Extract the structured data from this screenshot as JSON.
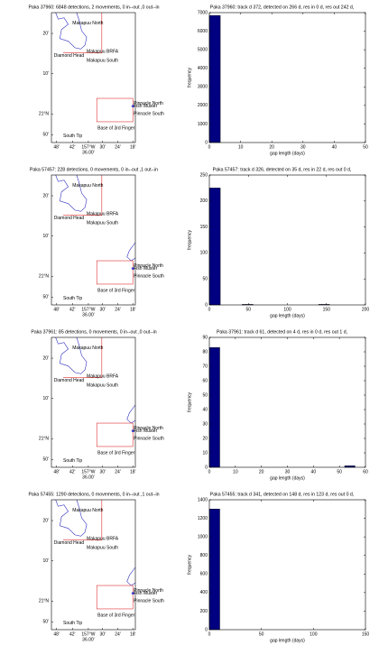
{
  "maps": [
    {
      "title": "Paka 37960: 6848 detections, 2 movements, 0 in--out ,0 out--in"
    },
    {
      "title": "Paka 57457: 228 detections, 0 movements, 0 in--out ,1 out--in"
    },
    {
      "title": "Paka 37961: 85 detections, 0 movements, 0 in--out ,0 out--in"
    },
    {
      "title": "Paka 57455: 1290 detections, 0 movements, 0 in--out ,1 out--in"
    }
  ],
  "map": {
    "places": [
      "Makapuu North",
      "Makapuu BRFA",
      "Diamond Head",
      "Makapuu South",
      "Fish Muster",
      "Pinnacle North",
      "Pinnacle South",
      "Base of 3rd Finger",
      "South Tip"
    ],
    "lat_ticks": [
      "20'",
      "10'",
      "21°N",
      "50'"
    ],
    "lon_ticks": [
      "48'",
      "42'",
      "157°W",
      "30'",
      "24'",
      "18'"
    ],
    "lon_sub": "36.00'"
  },
  "chart_data": [
    {
      "type": "histogram",
      "title": "Paka 37960: track d 372, detected on 266 d, res in 0 d, res out 242 d,",
      "xlabel": "gap length (days)",
      "ylabel": "frequency",
      "color": "#000080",
      "bins": [
        0,
        3.5
      ],
      "counts": [
        6850
      ],
      "xlim": [
        0,
        50
      ],
      "xticks": [
        0,
        10,
        20,
        30,
        40,
        50
      ],
      "ylim": [
        0,
        7000
      ],
      "yticks": [
        0,
        1000,
        2000,
        3000,
        4000,
        5000,
        6000,
        7000
      ]
    },
    {
      "type": "histogram",
      "title": "Paka 57457: track d 326, detected on 35 d, res in 22 d, res out 0 d,",
      "xlabel": "gap length (days)",
      "ylabel": "frequency",
      "color": "#000080",
      "bins": [
        0,
        14,
        28,
        42,
        56,
        70,
        84,
        98,
        112,
        126,
        140,
        154,
        168,
        182,
        196
      ],
      "counts": [
        225,
        0,
        0,
        1,
        0,
        0,
        0,
        0,
        0,
        0,
        1,
        0,
        0,
        0
      ],
      "xlim": [
        0,
        200
      ],
      "xticks": [
        0,
        50,
        100,
        150,
        200
      ],
      "ylim": [
        0,
        250
      ],
      "yticks": [
        0,
        50,
        100,
        150,
        200,
        250
      ]
    },
    {
      "type": "histogram",
      "title": "Paka 37961: track d 61, detected on 4 d, res in 0 d, res out 1 d,",
      "xlabel": "gap length (days)",
      "ylabel": "frequency",
      "color": "#000080",
      "bins": [
        0,
        4,
        8,
        12,
        16,
        20,
        24,
        28,
        32,
        36,
        40,
        44,
        48,
        52,
        56
      ],
      "counts": [
        83,
        0,
        0,
        0,
        0,
        0,
        0,
        0,
        0,
        0,
        0,
        0,
        0,
        1
      ],
      "xlim": [
        0,
        60
      ],
      "xticks": [
        0,
        10,
        20,
        30,
        40,
        50,
        60
      ],
      "ylim": [
        0,
        90
      ],
      "yticks": [
        0,
        10,
        20,
        30,
        40,
        50,
        60,
        70,
        80,
        90
      ]
    },
    {
      "type": "histogram",
      "title": "Paka 57455: track d 341, detected on 148 d, res in 123 d, res out 0 d,",
      "xlabel": "gap length (days)",
      "ylabel": "frequency",
      "color": "#000080",
      "bins": [
        0,
        10,
        20,
        30,
        40,
        50,
        60,
        70,
        80,
        90,
        100,
        110,
        120,
        130,
        140,
        150
      ],
      "counts": [
        1300,
        0,
        0,
        0,
        0,
        0,
        0,
        0,
        0,
        0,
        0,
        0,
        0,
        0,
        0
      ],
      "xlim": [
        0,
        150
      ],
      "xticks": [
        0,
        50,
        100,
        150
      ],
      "ylim": [
        0,
        1400
      ],
      "yticks": [
        0,
        200,
        400,
        600,
        800,
        1000,
        1200,
        1400
      ]
    }
  ]
}
